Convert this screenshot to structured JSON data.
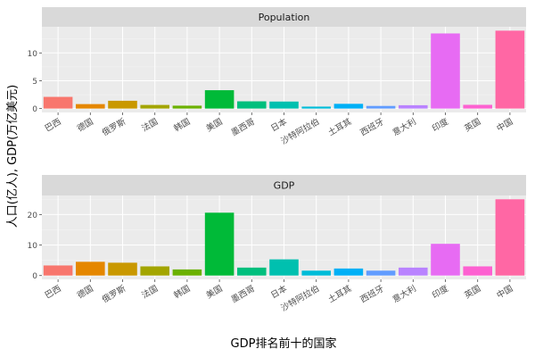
{
  "chart_data": {
    "type": "bar",
    "xlabel": "GDP排名前十的国家",
    "ylabel": "人口(亿人), GDP(万亿美元)",
    "categories": [
      "巴西",
      "德国",
      "俄罗斯",
      "法国",
      "韩国",
      "美国",
      "墨西哥",
      "日本",
      "沙特阿拉伯",
      "土耳其",
      "西班牙",
      "意大利",
      "印度",
      "英国",
      "中国"
    ],
    "colors": [
      "#F8766D",
      "#E58700",
      "#C99800",
      "#A3A500",
      "#6BB100",
      "#00BA38",
      "#00BF7D",
      "#00C0AF",
      "#00BCD8",
      "#00B0F6",
      "#619CFF",
      "#B983FF",
      "#E76BF3",
      "#FD61D1",
      "#FF67A4"
    ],
    "panels": [
      {
        "title": "Population",
        "ylim": [
          0,
          14
        ],
        "yticks": [
          0,
          5,
          10
        ],
        "values": [
          2.1,
          0.8,
          1.4,
          0.65,
          0.52,
          3.3,
          1.3,
          1.26,
          0.35,
          0.85,
          0.47,
          0.6,
          13.5,
          0.67,
          14.0
        ]
      },
      {
        "title": "GDP",
        "ylim": [
          0,
          25
        ],
        "yticks": [
          0,
          10,
          20
        ],
        "values": [
          3.3,
          4.5,
          4.2,
          3.0,
          2.0,
          20.6,
          2.6,
          5.3,
          1.6,
          2.3,
          1.6,
          2.6,
          10.4,
          3.0,
          25.0
        ]
      }
    ],
    "grid": true,
    "legend": "none"
  }
}
